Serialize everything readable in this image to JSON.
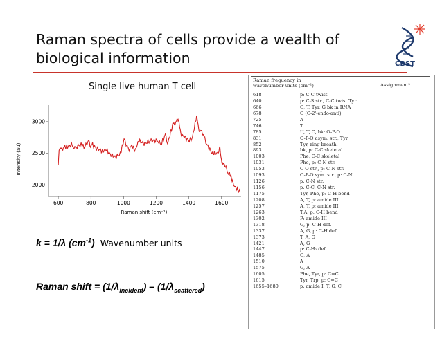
{
  "slide": {
    "title": "Raman spectra of cells provide a wealth of biological information",
    "logo_text": "CBST"
  },
  "chart": {
    "caption": "Single live human T cell"
  },
  "chart_data": {
    "type": "line",
    "xlabel": "Raman shift (cm⁻¹)",
    "ylabel": "Intensity (au)",
    "xlim": [
      540,
      1720
    ],
    "ylim": [
      1820,
      3260
    ],
    "xticks": [
      600,
      800,
      1000,
      1200,
      1400,
      1600
    ],
    "yticks": [
      2000,
      2500,
      3000
    ],
    "series": [
      {
        "color": "#d42020",
        "x": [
          600,
          605,
          618,
          640,
          666,
          678,
          700,
          725,
          746,
          760,
          785,
          800,
          810,
          831,
          852,
          870,
          893,
          920,
          950,
          980,
          1003,
          1031,
          1053,
          1070,
          1093,
          1126,
          1156,
          1175,
          1208,
          1230,
          1257,
          1270,
          1302,
          1318,
          1337,
          1350,
          1373,
          1400,
          1421,
          1447,
          1460,
          1485,
          1510,
          1540,
          1575,
          1590,
          1605,
          1615,
          1640,
          1658,
          1665,
          1680,
          1700,
          1715
        ],
        "y": [
          2280,
          2580,
          2560,
          2600,
          2610,
          2640,
          2580,
          2620,
          2640,
          2590,
          2700,
          2600,
          2640,
          2580,
          2560,
          2530,
          2560,
          2480,
          2440,
          2490,
          2720,
          2560,
          2620,
          2540,
          2700,
          2650,
          2690,
          2700,
          2700,
          2640,
          2800,
          2650,
          2960,
          2980,
          3050,
          2800,
          2760,
          2700,
          2740,
          3090,
          2880,
          2820,
          2640,
          2510,
          2500,
          2580,
          2300,
          2350,
          2190,
          2160,
          2060,
          1980,
          1920,
          1890
        ]
      }
    ]
  },
  "equations": {
    "k_lhs": "k = 1/λ (cm",
    "k_sup": "-1",
    "k_rhs": ")",
    "k_units": "Wavenumber units",
    "shift_a": "Raman shift = (1/λ",
    "shift_sub1": "incident",
    "shift_b": ") – (1/λ",
    "shift_sub2": "scattered",
    "shift_c": ")"
  },
  "table": {
    "header_left": "Raman frequency in wavenumber units (cm⁻¹)",
    "header_right": "Assignmentᵃ",
    "rows": [
      {
        "wn": "618",
        "as": "p: C-C twist"
      },
      {
        "wn": "640",
        "as": "p: C-S str., C-C twist Tyr"
      },
      {
        "wn": "666",
        "as": "G, T, Tyr, G bk in RNA"
      },
      {
        "wn": "678",
        "as": "G (C-2'-endo-anti)"
      },
      {
        "wn": "725",
        "as": "A"
      },
      {
        "wn": "746",
        "as": "T"
      },
      {
        "wn": "785",
        "as": "U, T, C, bk: O-P-O"
      },
      {
        "wn": "831",
        "as": "O-P-O asym. str., Tyr"
      },
      {
        "wn": "852",
        "as": "Tyr, ring breath."
      },
      {
        "wn": "893",
        "as": "bk, p: C-C skeletal"
      },
      {
        "wn": "1003",
        "as": "Phe, C-C skeletal"
      },
      {
        "wn": "1031",
        "as": "Phe, p: C-N str."
      },
      {
        "wn": "1053",
        "as": "C-O str., p: C-N str."
      },
      {
        "wn": "1093",
        "as": "O-P-O sym. str., p: C-N"
      },
      {
        "wn": "1126",
        "as": "p: C-N str."
      },
      {
        "wn": "1156",
        "as": "p: C-C, C-N str."
      },
      {
        "wn": "1175",
        "as": "Tyr, Phe, p: C-H bend"
      },
      {
        "wn": "1208",
        "as": "A, T, p: amide III"
      },
      {
        "wn": "1257",
        "as": "A, T, p: amide III"
      },
      {
        "wn": "1263",
        "as": "T,A, p: C-H bend"
      },
      {
        "wn": "1302",
        "as": "P: amide III"
      },
      {
        "wn": "1318",
        "as": "G, p: C-H def."
      },
      {
        "wn": "1337",
        "as": "A, G, p: C-H def."
      },
      {
        "wn": "1373",
        "as": "T, A, G"
      },
      {
        "wn": "1421",
        "as": "A, G"
      },
      {
        "wn": "1447",
        "as": "p: C-H₂ def."
      },
      {
        "wn": "1485",
        "as": "G, A"
      },
      {
        "wn": "1510",
        "as": "A"
      },
      {
        "wn": "1575",
        "as": "G, A"
      },
      {
        "wn": "1605",
        "as": "Phe, Tyr, p: C=C"
      },
      {
        "wn": "1615",
        "as": "Tyr, Trp, p: C=C"
      },
      {
        "wn": "1655–1680",
        "as": "p: amide I, T, G, C"
      }
    ]
  }
}
